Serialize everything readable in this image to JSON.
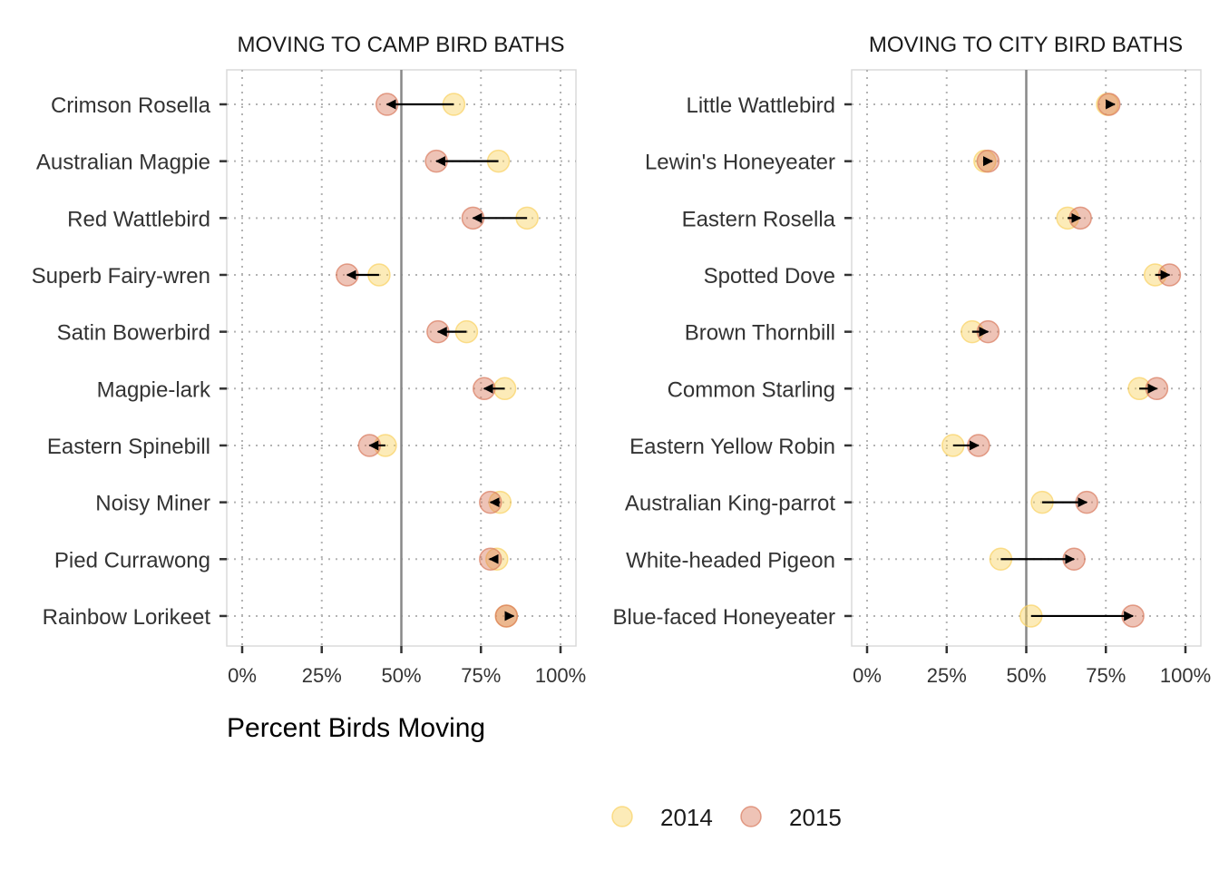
{
  "colors": {
    "y2014": "#F9D262",
    "y2015": "#D97B5E",
    "arrow": "#000000",
    "reference_line": "#888888",
    "grid": "#b3b3b3"
  },
  "chart_data": [
    {
      "type": "dumbbell-arrow",
      "title": "MOVING TO CAMP BIRD BATHS",
      "xlabel": "Percent Birds Moving",
      "ylabel": "",
      "xlim": [
        0,
        1
      ],
      "x_ticks": [
        0,
        0.25,
        0.5,
        0.75,
        1.0
      ],
      "x_tick_labels": [
        "0%",
        "25%",
        "50%",
        "75%",
        "100%"
      ],
      "reference_x": 0.5,
      "grid": "dotted",
      "categories": [
        "Crimson Rosella",
        "Australian Magpie",
        "Red Wattlebird",
        "Superb Fairy-wren",
        "Satin Bowerbird",
        "Magpie-lark",
        "Eastern Spinebill",
        "Noisy Miner",
        "Pied Currawong",
        "Rainbow Lorikeet"
      ],
      "series": [
        {
          "name": "2014",
          "values": [
            0.665,
            0.805,
            0.895,
            0.43,
            0.705,
            0.825,
            0.45,
            0.81,
            0.8,
            0.83
          ]
        },
        {
          "name": "2015",
          "values": [
            0.455,
            0.61,
            0.725,
            0.33,
            0.615,
            0.76,
            0.4,
            0.78,
            0.78,
            0.83
          ]
        }
      ]
    },
    {
      "type": "dumbbell-arrow",
      "title": "MOVING TO CITY BIRD BATHS",
      "xlabel": "",
      "ylabel": "",
      "xlim": [
        0,
        1
      ],
      "x_ticks": [
        0,
        0.25,
        0.5,
        0.75,
        1.0
      ],
      "x_tick_labels": [
        "0%",
        "25%",
        "50%",
        "75%",
        "100%"
      ],
      "reference_x": 0.5,
      "grid": "dotted",
      "categories": [
        "Little Wattlebird",
        "Lewin's Honeyeater",
        "Eastern Rosella",
        "Spotted Dove",
        "Brown Thornbill",
        "Common Starling",
        "Eastern Yellow Robin",
        "Australian King-parrot",
        "White-headed Pigeon",
        "Blue-faced Honeyeater"
      ],
      "series": [
        {
          "name": "2014",
          "values": [
            0.755,
            0.37,
            0.63,
            0.905,
            0.33,
            0.855,
            0.27,
            0.55,
            0.42,
            0.515
          ]
        },
        {
          "name": "2015",
          "values": [
            0.76,
            0.38,
            0.67,
            0.95,
            0.38,
            0.91,
            0.35,
            0.69,
            0.65,
            0.835
          ]
        }
      ]
    }
  ],
  "legend": {
    "position": "bottom",
    "items": [
      {
        "label": "2014",
        "color_key": "y2014"
      },
      {
        "label": "2015",
        "color_key": "y2015"
      }
    ]
  }
}
